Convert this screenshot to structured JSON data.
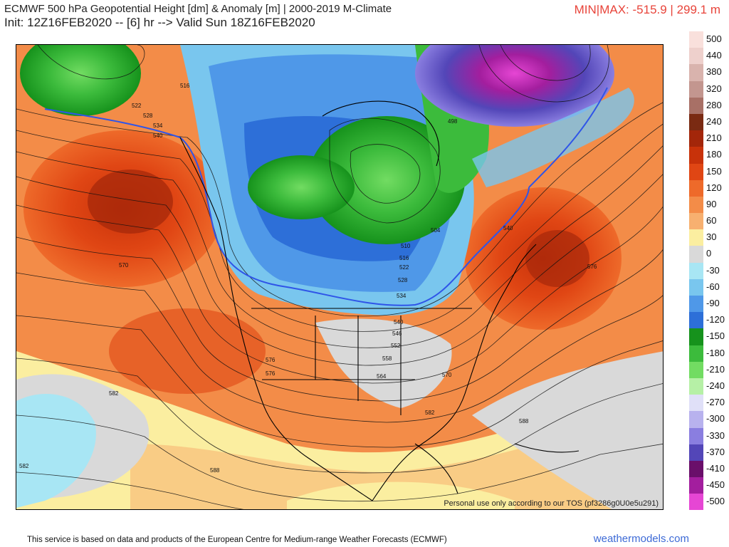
{
  "header": {
    "title_line1": "ECMWF 500 hPa Geopotential Height [dm] & Anomaly [m] | 2000-2019 M-Climate",
    "title_line2": "Init: 12Z16FEB2020 -- [6] hr --> Valid Sun 18Z16FEB2020",
    "minmax": "MIN|MAX: -515.9 | 299.1 m"
  },
  "map": {
    "tos_note": "Personal use only according to our TOS (pf3286g0U0e5u291)",
    "contour_labels": [
      "516",
      "522",
      "528",
      "534",
      "540",
      "498",
      "504",
      "510",
      "516",
      "522",
      "528",
      "534",
      "540",
      "546",
      "552",
      "558",
      "564",
      "570",
      "576",
      "576",
      "570",
      "576",
      "582",
      "582",
      "588",
      "582",
      "588",
      "540"
    ]
  },
  "colorbar": {
    "labels": [
      "500",
      "440",
      "380",
      "320",
      "280",
      "240",
      "210",
      "180",
      "150",
      "120",
      "90",
      "60",
      "30",
      "0",
      "-30",
      "-60",
      "-90",
      "-120",
      "-150",
      "-180",
      "-210",
      "-240",
      "-270",
      "-300",
      "-330",
      "-370",
      "-410",
      "-450",
      "-500"
    ],
    "colors": [
      "#f9e0dc",
      "#eed0cc",
      "#d9b3ad",
      "#c3968f",
      "#a87066",
      "#7a2a12",
      "#a3260a",
      "#c8320a",
      "#e04614",
      "#ee6a2a",
      "#f38c48",
      "#f7b070",
      "#fbeea0",
      "#d9d9d9",
      "#a8e6f4",
      "#79c6ee",
      "#4f98e8",
      "#2d6fd8",
      "#16921c",
      "#3cbb3c",
      "#72dc62",
      "#b6f0a6",
      "#e0e0f8",
      "#b8b2ee",
      "#8a7ee0",
      "#5346b8",
      "#6a0f6a",
      "#a31e9e",
      "#e646d4"
    ]
  },
  "footer": {
    "credit": "This service is based on data and products of the European Centre for Medium-range Weather Forecasts (ECMWF)",
    "brand": "weathermodels.com"
  }
}
